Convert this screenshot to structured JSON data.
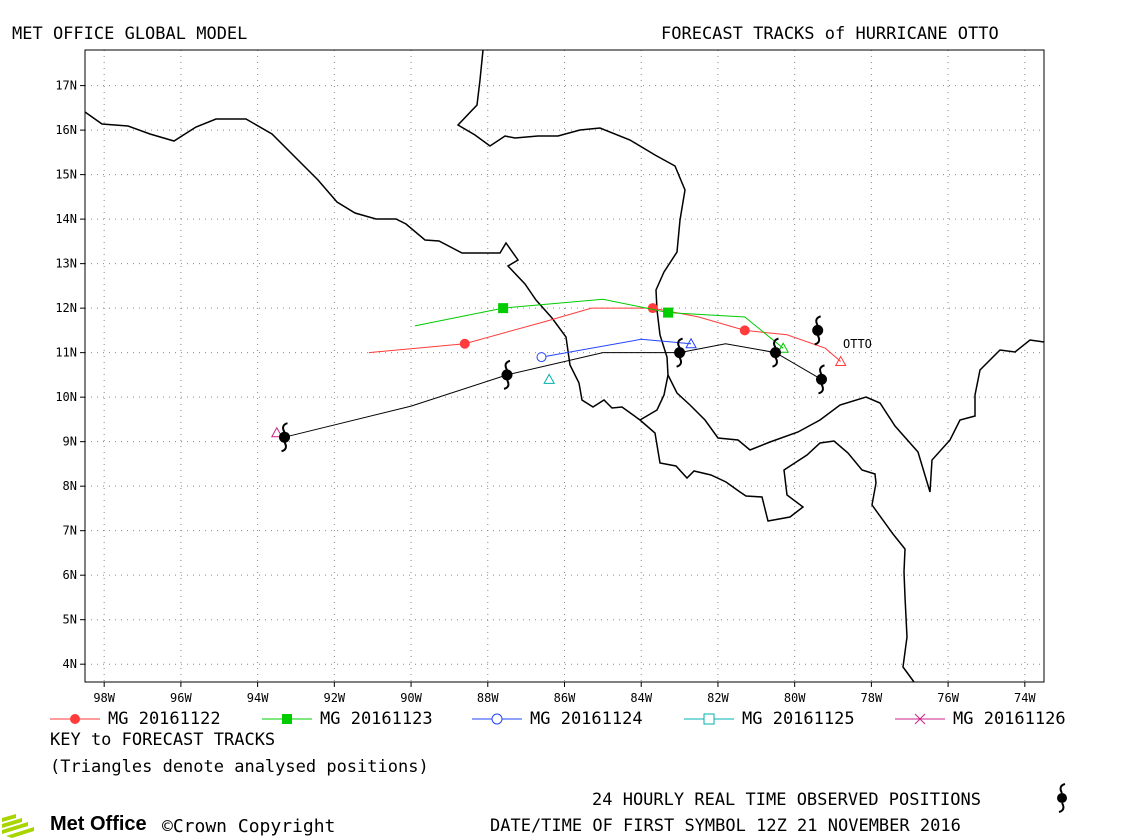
{
  "header": {
    "left_title": "MET OFFICE GLOBAL MODEL",
    "right_title": "FORECAST TRACKS of HURRICANE OTTO"
  },
  "colors": {
    "mg20161122": "#ff3b3b",
    "mg20161123": "#00cc00",
    "mg20161124": "#2244ff",
    "mg20161125": "#00b0b0",
    "mg20161126": "#cc2288",
    "observed": "#000000",
    "coast": "#000000"
  },
  "chart_data": {
    "type": "map-tracks",
    "lon_range": [
      -98.5,
      -73.5
    ],
    "lat_range": [
      3.6,
      17.8
    ],
    "x_ticks": [
      "98W",
      "96W",
      "94W",
      "92W",
      "90W",
      "88W",
      "86W",
      "84W",
      "82W",
      "80W",
      "78W",
      "76W",
      "74W"
    ],
    "y_ticks": [
      "17N",
      "16N",
      "15N",
      "14N",
      "13N",
      "12N",
      "11N",
      "10N",
      "9N",
      "8N",
      "7N",
      "6N",
      "5N",
      "4N"
    ],
    "grid": true,
    "storm_label": "OTTO",
    "series": [
      {
        "name": "MG 20161122",
        "color": "#ff3b3b",
        "marker": "circle-filled",
        "track": [
          [
            -78.8,
            10.8
          ],
          [
            -79.2,
            11.1
          ],
          [
            -80.2,
            11.4
          ],
          [
            -81.3,
            11.5
          ],
          [
            -82.5,
            11.8
          ],
          [
            -83.7,
            12.0
          ],
          [
            -85.3,
            12.0
          ],
          [
            -86.5,
            11.7
          ],
          [
            -88.6,
            11.2
          ],
          [
            -91.1,
            11.0
          ]
        ],
        "markers": [
          [
            -81.3,
            11.5
          ],
          [
            -83.7,
            12.0
          ],
          [
            -88.6,
            11.2
          ]
        ],
        "analysis": [
          -78.8,
          10.8
        ]
      },
      {
        "name": "MG 20161123",
        "color": "#00cc00",
        "marker": "square-filled",
        "track": [
          [
            -80.3,
            11.1
          ],
          [
            -81.3,
            11.8
          ],
          [
            -83.3,
            11.9
          ],
          [
            -85.0,
            12.2
          ],
          [
            -87.6,
            12.0
          ],
          [
            -89.9,
            11.6
          ]
        ],
        "markers": [
          [
            -83.3,
            11.9
          ],
          [
            -87.6,
            12.0
          ]
        ],
        "analysis": [
          -80.3,
          11.1
        ]
      },
      {
        "name": "MG 20161124",
        "color": "#2244ff",
        "marker": "circle-open",
        "track": [
          [
            -82.7,
            11.2
          ],
          [
            -84.0,
            11.3
          ],
          [
            -86.6,
            10.9
          ]
        ],
        "markers": [
          [
            -86.6,
            10.9
          ]
        ],
        "analysis": [
          -82.7,
          11.2
        ]
      },
      {
        "name": "MG 20161125",
        "color": "#00b0b0",
        "marker": "square-open",
        "track": [],
        "markers": [],
        "analysis": [
          -86.4,
          10.4
        ]
      },
      {
        "name": "MG 20161126",
        "color": "#cc2288",
        "marker": "cross",
        "track": [],
        "markers": [],
        "analysis": [
          -93.5,
          9.2
        ]
      }
    ],
    "observed": {
      "name": "24 HOURLY REAL TIME OBSERVED POSITIONS",
      "track": [
        [
          -79.3,
          10.4
        ],
        [
          -80.5,
          11.0
        ],
        [
          -81.8,
          11.2
        ],
        [
          -83.0,
          11.0
        ],
        [
          -85.0,
          11.0
        ],
        [
          -87.5,
          10.5
        ],
        [
          -90.0,
          9.8
        ],
        [
          -93.3,
          9.1
        ]
      ],
      "symbols": [
        [
          -79.4,
          11.5
        ],
        [
          -79.3,
          10.4
        ],
        [
          -80.5,
          11.0
        ],
        [
          -83.0,
          11.0
        ],
        [
          -87.5,
          10.5
        ],
        [
          -93.3,
          9.1
        ]
      ]
    }
  },
  "legend": {
    "items": [
      {
        "label": "MG 20161122"
      },
      {
        "label": "MG 20161123"
      },
      {
        "label": "MG 20161124"
      },
      {
        "label": "MG 20161125"
      },
      {
        "label": "MG 20161126"
      }
    ],
    "key_title": "KEY to FORECAST TRACKS",
    "key_note": "(Triangles denote analysed positions)"
  },
  "footer": {
    "observed_label": "24 HOURLY REAL TIME OBSERVED POSITIONS",
    "datetime_label": "DATE/TIME OF FIRST SYMBOL 12Z 21 NOVEMBER 2016",
    "logo_text": "Met Office",
    "copyright": "©Crown Copyright"
  }
}
